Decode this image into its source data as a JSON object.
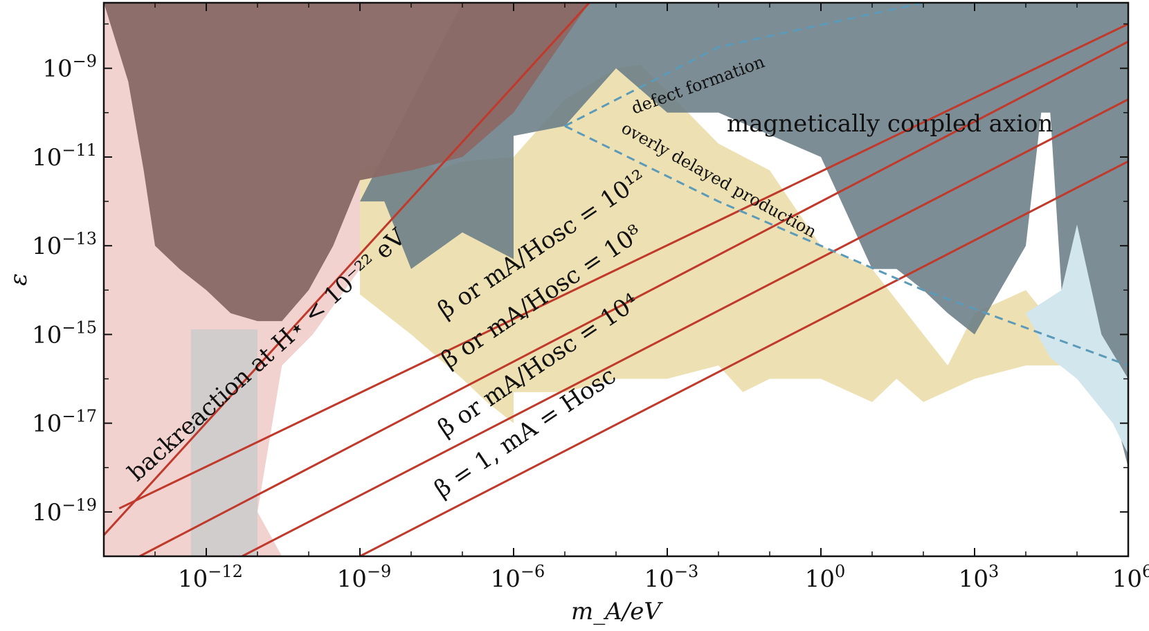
{
  "chart_data": {
    "type": "area",
    "title": "",
    "xlabel": "m_A/eV",
    "ylabel": "ε",
    "x_scale": "log",
    "y_scale": "log",
    "xlim": [
      1e-14,
      1000000.0
    ],
    "ylim": [
      1e-20,
      3e-08
    ],
    "x_ticks": [
      {
        "value": 1e-12,
        "label_base": "10",
        "label_exp": "−12"
      },
      {
        "value": 1e-09,
        "label_base": "10",
        "label_exp": "−9"
      },
      {
        "value": 1e-06,
        "label_base": "10",
        "label_exp": "−6"
      },
      {
        "value": 0.001,
        "label_base": "10",
        "label_exp": "−3"
      },
      {
        "value": 1,
        "label_base": "10",
        "label_exp": "0"
      },
      {
        "value": 1000.0,
        "label_base": "10",
        "label_exp": "3"
      },
      {
        "value": 1000000.0,
        "label_base": "10",
        "label_exp": "6"
      }
    ],
    "y_ticks": [
      {
        "value": 1e-09,
        "label_base": "10",
        "label_exp": "−9"
      },
      {
        "value": 1e-11,
        "label_base": "10",
        "label_exp": "−11"
      },
      {
        "value": 1e-13,
        "label_base": "10",
        "label_exp": "−13"
      },
      {
        "value": 1e-15,
        "label_base": "10",
        "label_exp": "−15"
      },
      {
        "value": 1e-17,
        "label_base": "10",
        "label_exp": "−17"
      },
      {
        "value": 1e-19,
        "label_base": "10",
        "label_exp": "−19"
      }
    ],
    "colors": {
      "red_line": "#c0392b",
      "brown_region": "#8a6a66",
      "pink_region": "#f0d0cc",
      "yellow_region": "#e3cf8a",
      "dark_region": "#6a7d86",
      "light_blue_region": "#d2e6ee",
      "grey_band": "#cccccc",
      "dashed": "#5b9ab8"
    },
    "regions": [
      {
        "id": "pink",
        "color": "#f0d0cc",
        "opacity": 0.95,
        "points": [
          [
            1e-14,
            3e-08
          ],
          [
            1e-14,
            1e-20
          ],
          [
            3e-11,
            1e-20
          ],
          [
            1e-11,
            1e-19
          ],
          [
            3e-11,
            2e-16
          ],
          [
            1.2e-10,
            1e-15
          ],
          [
            1e-09,
            3e-14
          ],
          [
            1e-09,
            3e-08
          ]
        ]
      },
      {
        "id": "yellow",
        "color": "#e3cf8a",
        "opacity": 0.65,
        "points": [
          [
            1e-09,
            5e-12
          ],
          [
            3e-09,
            8e-12
          ],
          [
            1e-08,
            1.5e-11
          ],
          [
            3e-08,
            5e-12
          ],
          [
            1e-07,
            8e-12
          ],
          [
            1e-06,
            1e-11
          ],
          [
            1e-05,
            2e-10
          ],
          [
            0.0001,
            1e-09
          ],
          [
            0.0003,
            1.2e-09
          ],
          [
            0.001,
            3e-10
          ],
          [
            0.01,
            2e-11
          ],
          [
            0.1,
            5e-12
          ],
          [
            1,
            1e-13
          ],
          [
            10,
            3e-14
          ],
          [
            100,
            1e-15
          ],
          [
            300,
            2e-16
          ],
          [
            1000.0,
            3e-15
          ],
          [
            10000.0,
            1e-14
          ],
          [
            50000.0,
            1e-15
          ],
          [
            100000.0,
            5e-16
          ],
          [
            100000.0,
            2e-16
          ],
          [
            10000.0,
            2e-16
          ],
          [
            1000.0,
            1e-16
          ],
          [
            100,
            3e-17
          ],
          [
            30,
            1e-16
          ],
          [
            10,
            3e-17
          ],
          [
            1,
            1e-16
          ],
          [
            0.1,
            1e-16
          ],
          [
            0.03,
            5e-17
          ],
          [
            0.01,
            2e-16
          ],
          [
            0.001,
            1e-16
          ],
          [
            0.0001,
            1e-16
          ],
          [
            1e-05,
            5e-17
          ],
          [
            1e-06,
            5e-17
          ],
          [
            1e-06,
            1e-17
          ],
          [
            3e-07,
            3e-17
          ],
          [
            1e-07,
            1e-16
          ],
          [
            1e-08,
            1e-15
          ],
          [
            1e-09,
            8e-15
          ]
        ]
      },
      {
        "id": "dark",
        "color": "#6a7d86",
        "opacity": 0.88,
        "points": [
          [
            1e-07,
            3e-08
          ],
          [
            1000000.0,
            3e-08
          ],
          [
            1000000.0,
            1e-18
          ],
          [
            600000.0,
            1e-17
          ],
          [
            300000.0,
            1e-16
          ],
          [
            100000.0,
            1e-15
          ],
          [
            50000.0,
            1e-14
          ],
          [
            30000.0,
            1e-10
          ],
          [
            20000.0,
            1e-10
          ],
          [
            10000.0,
            1e-13
          ],
          [
            1000.0,
            1e-15
          ],
          [
            300,
            3e-15
          ],
          [
            100,
            1e-14
          ],
          [
            30,
            3e-14
          ],
          [
            10,
            3e-14
          ],
          [
            1,
            1e-11
          ],
          [
            0.01,
            1e-10
          ],
          [
            0.001,
            1e-10
          ],
          [
            0.0001,
            1e-09
          ],
          [
            1e-05,
            5e-11
          ],
          [
            1e-06,
            3e-11
          ],
          [
            1e-06,
            5e-14
          ],
          [
            1e-07,
            2e-13
          ],
          [
            1e-08,
            3e-14
          ],
          [
            3e-09,
            1e-12
          ],
          [
            1e-09,
            1e-12
          ]
        ]
      },
      {
        "id": "light_blue",
        "color": "#d2e6ee",
        "opacity": 1,
        "points": [
          [
            10000.0,
            3e-15
          ],
          [
            50000.0,
            1e-14
          ],
          [
            100000.0,
            3e-13
          ],
          [
            300000.0,
            1e-15
          ],
          [
            1000000.0,
            1e-16
          ],
          [
            1000000.0,
            2e-18
          ],
          [
            500000.0,
            1e-17
          ],
          [
            100000.0,
            1e-16
          ],
          [
            30000.0,
            3e-16
          ]
        ]
      },
      {
        "id": "brown",
        "color": "#8a6a66",
        "opacity": 0.97,
        "points": [
          [
            1e-14,
            3e-08
          ],
          [
            3e-14,
            5e-10
          ],
          [
            6e-14,
            5e-12
          ],
          [
            1e-13,
            1e-13
          ],
          [
            3e-13,
            3e-14
          ],
          [
            1e-12,
            1e-14
          ],
          [
            3e-12,
            3e-15
          ],
          [
            1e-11,
            2e-15
          ],
          [
            3e-11,
            2e-15
          ],
          [
            1e-10,
            1e-14
          ],
          [
            3e-10,
            1e-13
          ],
          [
            1e-09,
            3e-12
          ],
          [
            1e-08,
            5e-12
          ],
          [
            1e-07,
            1e-11
          ],
          [
            1e-06,
            1e-10
          ],
          [
            3e-05,
            3e-08
          ]
        ]
      }
    ],
    "grey_band": {
      "x_min": 5e-13,
      "x_max": 1e-11
    },
    "red_lines": [
      {
        "id": "backreaction",
        "from": [
          1e-14,
          3e-20
        ],
        "to": [
          3e-05,
          3e-08
        ]
      },
      {
        "id": "beta_1e12",
        "from": [
          2e-14,
          1.2e-19
        ],
        "to": [
          1000000.0,
          1e-08
        ]
      },
      {
        "id": "beta_1e8",
        "from": [
          5e-14,
          1e-20
        ],
        "to": [
          1000000.0,
          4e-09
        ]
      },
      {
        "id": "beta_1e4",
        "from": [
          5e-12,
          1e-20
        ],
        "to": [
          1000000.0,
          2e-10
        ]
      },
      {
        "id": "beta_1",
        "from": [
          1e-09,
          1e-20
        ],
        "to": [
          1000000.0,
          8e-12
        ]
      }
    ],
    "dashed_lines": [
      {
        "id": "defect_formation",
        "points": [
          [
            1e-05,
            5e-11
          ],
          [
            0.01,
            3e-09
          ],
          [
            100.0,
            3e-08
          ]
        ]
      },
      {
        "id": "overly_delayed",
        "points": [
          [
            1e-05,
            5e-11
          ],
          [
            0.01,
            1e-12
          ],
          [
            100.0,
            1e-14
          ],
          [
            1000000.0,
            2e-16
          ]
        ]
      }
    ],
    "annotations": [
      {
        "id": "backreaction",
        "text": "backreaction at H⋆ < 10⁻²² eV"
      },
      {
        "id": "beta_1e12",
        "text": "β or mA/Hosc = 10¹²"
      },
      {
        "id": "beta_1e8",
        "text": "β or mA/Hosc = 10⁸"
      },
      {
        "id": "beta_1e4",
        "text": "β or mA/Hosc = 10⁴"
      },
      {
        "id": "beta_1",
        "text": "β = 1, mA = Hosc"
      },
      {
        "id": "defect",
        "text": "defect formation"
      },
      {
        "id": "overly",
        "text": "overly delayed production"
      },
      {
        "id": "magnetic",
        "text": "magnetically coupled axion"
      }
    ]
  }
}
